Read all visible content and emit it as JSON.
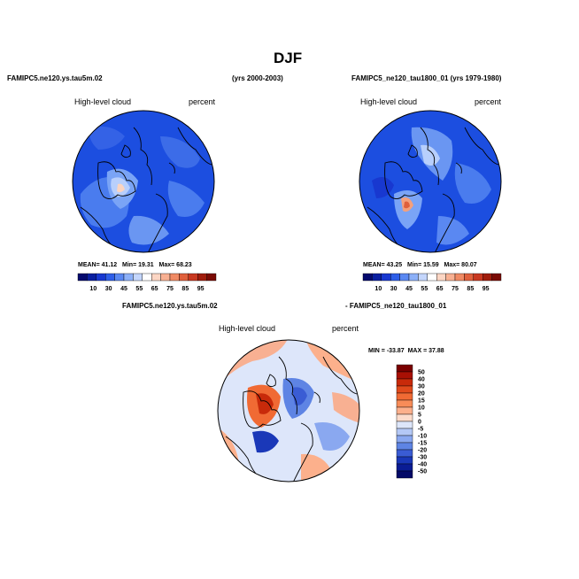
{
  "page": {
    "title": "DJF"
  },
  "panels": [
    {
      "case_name": "FAMIPC5.ne120.ys.tau5m.02",
      "years": "(yrs 2000-2003)",
      "variable": "High-level cloud",
      "units": "percent",
      "stats": {
        "mean_label": "MEAN=",
        "mean": "41.12",
        "min_label": "Min=",
        "min": "19.31",
        "max_label": "Max=",
        "max": "68.23"
      }
    },
    {
      "case_name": "FAMIPC5_ne120_tau1800_01 (yrs 1979-1980)",
      "variable": "High-level cloud",
      "units": "percent",
      "stats": {
        "mean_label": "MEAN=",
        "mean": "43.25",
        "min_label": "Min=",
        "min": "15.59",
        "max_label": "Max=",
        "max": "80.07"
      }
    }
  ],
  "abs_colorbar": {
    "labels": [
      "10",
      "30",
      "45",
      "55",
      "65",
      "75",
      "85",
      "95"
    ],
    "colors": [
      "#050a6e",
      "#0a1fa0",
      "#1838d0",
      "#2e5ee8",
      "#5a88f2",
      "#8cb0f8",
      "#c4d6fc",
      "#ffffff",
      "#fcd6c4",
      "#f8b092",
      "#f08a64",
      "#e0603c",
      "#c83820",
      "#a01c0c",
      "#7a0a04"
    ]
  },
  "difference": {
    "title_left": "FAMIPC5.ne120.ys.tau5m.02",
    "title_right": "- FAMIPC5_ne120_tau1800_01",
    "variable": "High-level cloud",
    "units": "percent",
    "min_label": "MIN =",
    "min": "-33.87",
    "max_label": "MAX =",
    "max": "37.88",
    "colorbar_labels": [
      "50",
      "40",
      "30",
      "20",
      "15",
      "10",
      "5",
      "0",
      "-5",
      "-10",
      "-15",
      "-20",
      "-30",
      "-40",
      "-50"
    ],
    "colorbar_colors": [
      "#7a0000",
      "#a81004",
      "#c82a0a",
      "#e04a1c",
      "#f06a34",
      "#f88c58",
      "#fcb08c",
      "#fcdccc",
      "#dde6fa",
      "#b4c8f6",
      "#8aa8f0",
      "#5e84e4",
      "#3a5cd4",
      "#1a38b8",
      "#0a1c94",
      "#040a68"
    ]
  }
}
